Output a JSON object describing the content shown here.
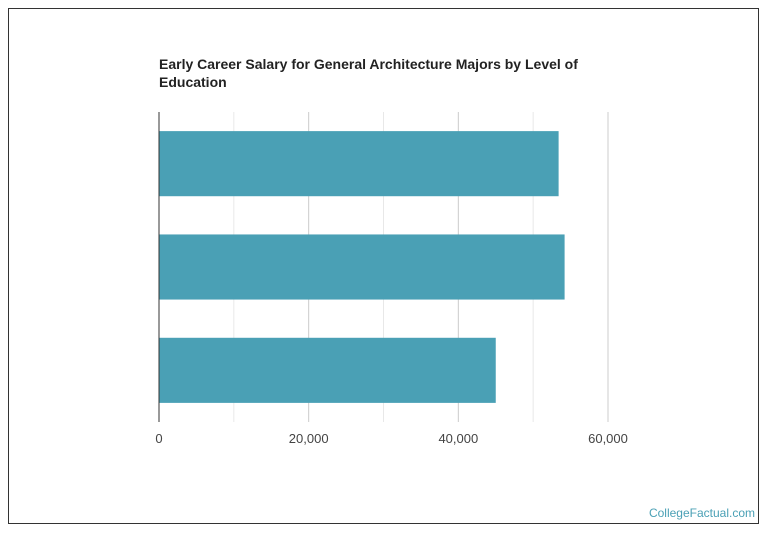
{
  "chart_data": {
    "type": "bar",
    "orientation": "horizontal",
    "title": "Early Career Salary for General Architecture Majors by Level of Education",
    "categories": [
      "",
      "",
      ""
    ],
    "values": [
      53400,
      54200,
      45000
    ],
    "xlim": [
      0,
      60000
    ],
    "x_ticks": [
      0,
      20000,
      40000,
      60000
    ],
    "x_tick_labels": [
      "0",
      "20,000",
      "40,000",
      "60,000"
    ],
    "xlabel": "",
    "ylabel": "",
    "grid": true,
    "bar_color": "#4aa0b5",
    "grid_color": "#dddddd"
  },
  "credit": "CollegeFactual.com"
}
